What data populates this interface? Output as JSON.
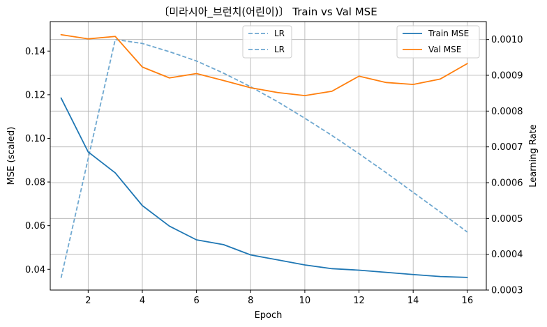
{
  "chart_data": {
    "type": "line",
    "title": "〔미라시아_브런치(어린이)〕 Train vs Val MSE",
    "xlabel": "Epoch",
    "ylabel": "MSE (scaled)",
    "y2label": "Learning Rate",
    "x": [
      1,
      2,
      3,
      4,
      5,
      6,
      7,
      8,
      9,
      10,
      11,
      12,
      13,
      14,
      15,
      16
    ],
    "xticks": [
      2,
      4,
      6,
      8,
      10,
      12,
      14,
      16
    ],
    "xlim": [
      0.6,
      16.7
    ],
    "ylim": [
      0.0305,
      0.1535
    ],
    "yticks": [
      0.04,
      0.06,
      0.08,
      0.1,
      0.12,
      0.14
    ],
    "ytick_labels": [
      "0.04",
      "0.06",
      "0.08",
      "0.10",
      "0.12",
      "0.14"
    ],
    "y2lim": [
      0.0003,
      0.00105
    ],
    "y2ticks": [
      0.0003,
      0.0004,
      0.0005,
      0.0006,
      0.0007,
      0.0008,
      0.0009,
      0.001
    ],
    "y2tick_labels": [
      "0.0003",
      "0.0004",
      "0.0005",
      "0.0006",
      "0.0007",
      "0.0008",
      "0.0009",
      "0.0010"
    ],
    "grid": true,
    "series": [
      {
        "name": "Train MSE",
        "axis": "left",
        "color": "#1f77b4",
        "style": "solid",
        "values": [
          0.1185,
          0.0938,
          0.0842,
          0.0692,
          0.0598,
          0.0535,
          0.0513,
          0.0466,
          0.0443,
          0.042,
          0.0403,
          0.0396,
          0.0386,
          0.0376,
          0.0367,
          0.0363
        ]
      },
      {
        "name": "Val MSE",
        "axis": "left",
        "color": "#ff7f0e",
        "style": "solid",
        "values": [
          0.1475,
          0.1456,
          0.1467,
          0.1327,
          0.1277,
          0.1297,
          0.1265,
          0.1232,
          0.121,
          0.1196,
          0.1216,
          0.1285,
          0.1256,
          0.1247,
          0.1272,
          0.1343
        ]
      },
      {
        "name": "LR",
        "axis": "right",
        "color": "#6fa8d0",
        "style": "dashed",
        "values": [
          0.000334,
          0.000667,
          0.001,
          0.000989,
          0.000966,
          0.00094,
          0.000906,
          0.000868,
          0.000826,
          0.00078,
          0.000732,
          0.000681,
          0.000628,
          0.000573,
          0.000518,
          0.000462
        ]
      }
    ],
    "legends": [
      {
        "placement": "top-center",
        "entries": [
          {
            "name": "LR"
          },
          {
            "name": "LR"
          }
        ]
      },
      {
        "placement": "top-right",
        "entries": [
          {
            "name": "Train MSE"
          },
          {
            "name": "Val MSE"
          }
        ]
      }
    ]
  }
}
